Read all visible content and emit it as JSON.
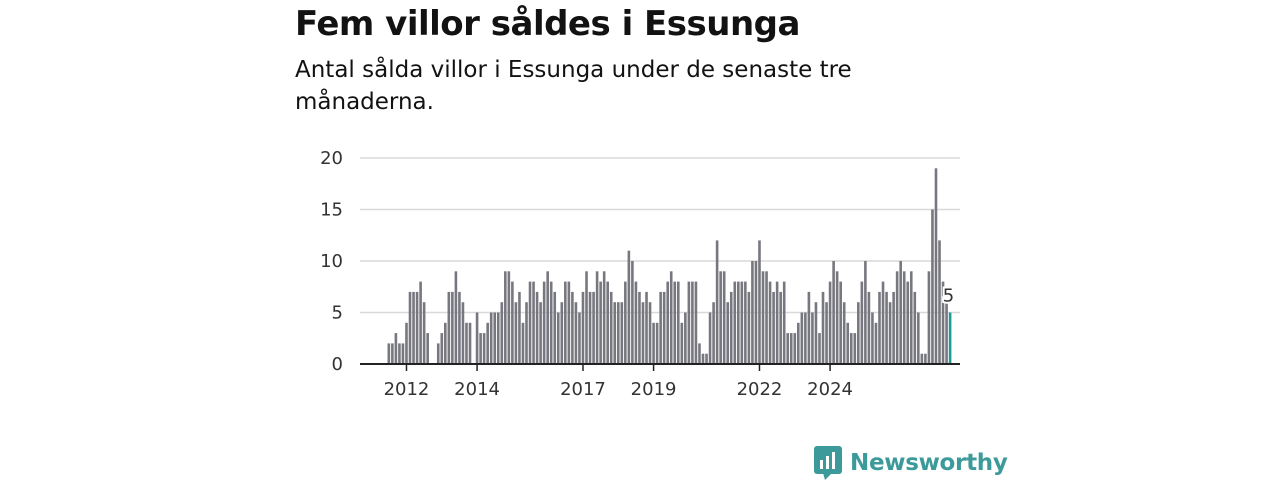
{
  "title": "Fem villor såldes i Essunga",
  "subtitle": "Antal sålda villor i Essunga under de senaste tre månaderna.",
  "logo": {
    "text": "Newsworthy",
    "icon": "bar-chart-speech-bubble-icon",
    "color": "#3d9a9a"
  },
  "chart_data": {
    "type": "bar",
    "title": "Fem villor såldes i Essunga",
    "subtitle": "Antal sålda villor i Essunga under de senaste tre månaderna.",
    "xlabel": "",
    "ylabel": "",
    "ylim": [
      0,
      20
    ],
    "yticks": [
      0,
      5,
      10,
      15,
      20
    ],
    "xtick_labels": [
      "2012",
      "2014",
      "2017",
      "2019",
      "2022",
      "2024"
    ],
    "xtick_positions": [
      6,
      26,
      56,
      76,
      106,
      126
    ],
    "grid": true,
    "bar_color": "#77777f",
    "highlight_color": "#1e9c93",
    "highlight_label": "5",
    "values": [
      0,
      2,
      2,
      3,
      2,
      2,
      4,
      7,
      7,
      7,
      8,
      6,
      3,
      0,
      0,
      2,
      3,
      4,
      7,
      7,
      9,
      7,
      6,
      4,
      4,
      0,
      5,
      3,
      3,
      4,
      5,
      5,
      5,
      6,
      9,
      9,
      8,
      6,
      7,
      4,
      6,
      8,
      8,
      7,
      6,
      8,
      9,
      8,
      7,
      5,
      6,
      8,
      8,
      7,
      6,
      5,
      7,
      9,
      7,
      7,
      9,
      8,
      9,
      8,
      7,
      6,
      6,
      6,
      8,
      11,
      10,
      8,
      7,
      6,
      7,
      6,
      4,
      4,
      7,
      7,
      8,
      9,
      8,
      8,
      4,
      5,
      8,
      8,
      8,
      2,
      1,
      1,
      5,
      6,
      12,
      9,
      9,
      6,
      7,
      8,
      8,
      8,
      8,
      7,
      10,
      10,
      12,
      9,
      9,
      8,
      7,
      8,
      7,
      8,
      3,
      3,
      3,
      4,
      5,
      5,
      7,
      5,
      6,
      3,
      7,
      6,
      8,
      10,
      9,
      8,
      6,
      4,
      3,
      3,
      6,
      8,
      10,
      7,
      5,
      4,
      7,
      8,
      7,
      6,
      7,
      9,
      10,
      9,
      8,
      9,
      7,
      5,
      1,
      1,
      9,
      15,
      19,
      12,
      8,
      6,
      5
    ]
  }
}
